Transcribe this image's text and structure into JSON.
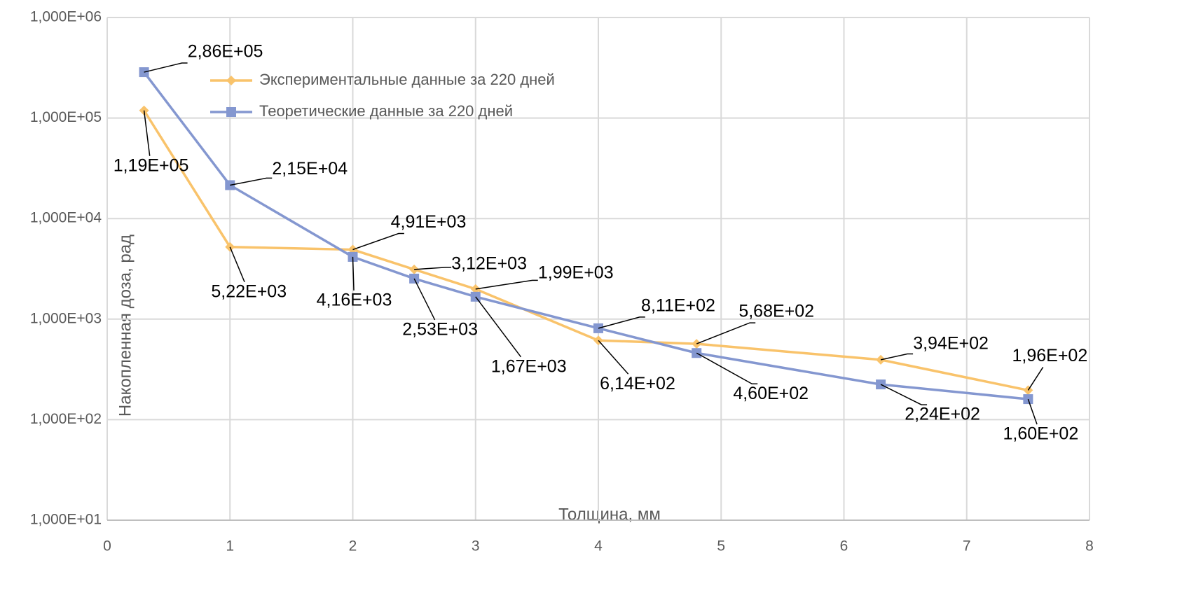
{
  "chart_data": {
    "type": "line",
    "xlabel": "Толщина, мм",
    "ylabel": "Накопленная доза, рад",
    "log_y": true,
    "grid": true,
    "legend": "top-left",
    "xlim": [
      0,
      8
    ],
    "xticks": [
      0,
      1,
      2,
      3,
      4,
      5,
      6,
      7,
      8
    ],
    "ylim": [
      10,
      1000000
    ],
    "yticks": [
      {
        "value": 10,
        "label": "1,000E+01"
      },
      {
        "value": 100,
        "label": "1,000E+02"
      },
      {
        "value": 1000,
        "label": "1,000E+03"
      },
      {
        "value": 10000,
        "label": "1,000E+04"
      },
      {
        "value": 100000,
        "label": "1,000E+05"
      },
      {
        "value": 1000000,
        "label": "1,000E+06"
      }
    ],
    "x": [
      0.3,
      1,
      2,
      2.5,
      3,
      4,
      4.8,
      6.3,
      7.5
    ],
    "series": [
      {
        "name": "Экспериментальные данные за 220 дней",
        "color": "#f9c36b",
        "marker": "diamond",
        "values": [
          119000,
          5220,
          4910,
          3120,
          1990,
          614,
          568,
          394,
          196
        ],
        "value_labels": [
          "1,19E+05",
          "5,22E+03",
          "4,91E+03",
          "3,12E+03",
          "1,99E+03",
          "6,14E+02",
          "5,68E+02",
          "3,94E+02",
          "1,96E+02"
        ]
      },
      {
        "name": "Теоретические данные за 220 дней",
        "color": "#8497d0",
        "marker": "square",
        "values": [
          286000,
          21500,
          4160,
          2530,
          1670,
          811,
          460,
          224,
          160
        ],
        "value_labels": [
          "2,86E+05",
          "2,15E+04",
          "4,16E+03",
          "2,53E+03",
          "1,67E+03",
          "8,11E+02",
          "4,60E+02",
          "2,24E+02",
          "1,60E+02"
        ]
      }
    ]
  }
}
